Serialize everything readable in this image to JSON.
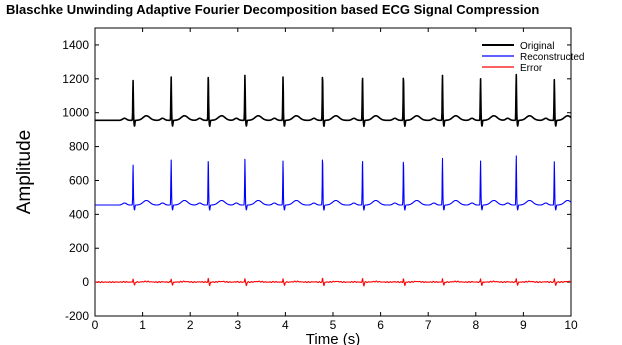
{
  "chart_data": {
    "type": "line",
    "title": "Blaschke Unwinding Adaptive Fourier Decomposition based ECG Signal Compression",
    "xlabel": "Time (s)",
    "ylabel": "Amplitude",
    "xlim": [
      0,
      10
    ],
    "ylim": [
      -200,
      1500
    ],
    "xticks": [
      0,
      1,
      2,
      3,
      4,
      5,
      6,
      7,
      8,
      9,
      10
    ],
    "yticks": [
      -200,
      0,
      200,
      400,
      600,
      800,
      1000,
      1200,
      1400
    ],
    "grid": false,
    "legend_position": "top-right",
    "beat_times": [
      0.8,
      1.6,
      2.38,
      3.15,
      3.95,
      4.78,
      5.62,
      6.48,
      7.3,
      8.1,
      8.85,
      9.65
    ],
    "series": [
      {
        "name": "Original",
        "color": "#000000",
        "baseline": 955,
        "baseline_wave_amplitude": 30,
        "peak_values": [
          1190,
          1210,
          1225,
          1220,
          1210,
          1225,
          1220,
          1220,
          1220,
          1200,
          1225,
          1195
        ],
        "trough_value": 920
      },
      {
        "name": "Reconstructed",
        "color": "#0000ff",
        "baseline": 455,
        "baseline_wave_amplitude": 30,
        "peak_values": [
          690,
          720,
          730,
          725,
          715,
          740,
          730,
          725,
          730,
          715,
          745,
          710
        ],
        "trough_value": 425
      },
      {
        "name": "Error",
        "color": "#ff0000",
        "baseline": 0,
        "baseline_wave_amplitude": 4,
        "peak_values": [
          20,
          20,
          22,
          20,
          20,
          22,
          20,
          20,
          22,
          20,
          22,
          20
        ],
        "trough_value": -20
      }
    ]
  }
}
